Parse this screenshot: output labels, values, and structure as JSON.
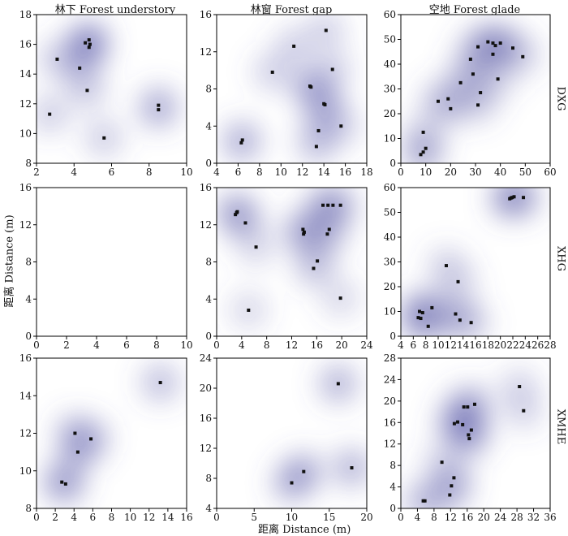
{
  "figure": {
    "col_titles": [
      "林下 Forest understory",
      "林窗 Forest gap",
      "空地 Forest glade"
    ],
    "row_labels": [
      "DXG",
      "XHG",
      "XMHE"
    ],
    "xlabel": "距离 Distance (m)",
    "ylabel": "距离 Distance (m)",
    "colors": {
      "density": "#5a5aa8",
      "point": "#111111",
      "frame": "#000000"
    }
  },
  "chart_data": [
    {
      "type": "scatter",
      "row": "DXG",
      "column": "林下 Forest understory",
      "xlim": [
        2,
        10
      ],
      "ylim": [
        8,
        18
      ],
      "xticks": [
        2,
        4,
        6,
        8,
        10
      ],
      "yticks": [
        8,
        10,
        12,
        14,
        16,
        18
      ],
      "points": [
        [
          4.8,
          16.3
        ],
        [
          4.6,
          16.1
        ],
        [
          4.85,
          16.0
        ],
        [
          4.8,
          15.8
        ],
        [
          3.1,
          15.0
        ],
        [
          4.3,
          14.4
        ],
        [
          4.7,
          12.9
        ],
        [
          8.5,
          11.9
        ],
        [
          8.5,
          11.6
        ],
        [
          2.7,
          11.3
        ],
        [
          5.6,
          9.7
        ]
      ]
    },
    {
      "type": "scatter",
      "row": "DXG",
      "column": "林窗 Forest gap",
      "xlim": [
        4,
        18
      ],
      "ylim": [
        0,
        16
      ],
      "xticks": [
        4,
        6,
        8,
        10,
        12,
        14,
        16,
        18
      ],
      "yticks": [
        0,
        4,
        8,
        12,
        16
      ],
      "points": [
        [
          14.2,
          14.3
        ],
        [
          11.2,
          12.6
        ],
        [
          14.8,
          10.1
        ],
        [
          9.2,
          9.8
        ],
        [
          12.7,
          8.3
        ],
        [
          12.8,
          8.2
        ],
        [
          14.0,
          6.4
        ],
        [
          14.1,
          6.3
        ],
        [
          15.6,
          4.0
        ],
        [
          13.5,
          3.5
        ],
        [
          6.4,
          2.5
        ],
        [
          6.3,
          2.2
        ],
        [
          13.3,
          1.8
        ]
      ]
    },
    {
      "type": "scatter",
      "row": "DXG",
      "column": "空地 Forest glade",
      "xlim": [
        0,
        60
      ],
      "ylim": [
        0,
        60
      ],
      "xticks": [
        0,
        10,
        20,
        30,
        40,
        50,
        60
      ],
      "yticks": [
        0,
        10,
        20,
        30,
        40,
        50,
        60
      ],
      "points": [
        [
          35,
          49
        ],
        [
          37,
          48.5
        ],
        [
          40,
          48.5
        ],
        [
          38,
          47.5
        ],
        [
          31,
          47
        ],
        [
          45,
          46.5
        ],
        [
          37,
          44
        ],
        [
          49,
          43
        ],
        [
          28,
          42
        ],
        [
          29,
          36
        ],
        [
          24,
          32.5
        ],
        [
          39,
          34
        ],
        [
          32,
          28.5
        ],
        [
          19,
          26
        ],
        [
          15,
          25
        ],
        [
          31,
          23.5
        ],
        [
          20,
          22
        ],
        [
          9,
          12.5
        ],
        [
          10,
          6
        ],
        [
          9,
          4.5
        ],
        [
          8,
          3.5
        ]
      ]
    },
    {
      "type": "scatter",
      "row": "XHG",
      "column": "林下 Forest understory",
      "xlim": [
        0,
        10
      ],
      "ylim": [
        0,
        16
      ],
      "xticks": [
        0,
        2,
        4,
        6,
        8,
        10
      ],
      "yticks": [
        0,
        4,
        8,
        12,
        16
      ],
      "points": []
    },
    {
      "type": "scatter",
      "row": "XHG",
      "column": "林窗 Forest gap",
      "xlim": [
        0,
        24
      ],
      "ylim": [
        0,
        16
      ],
      "xticks": [
        0,
        4,
        8,
        12,
        16,
        20,
        24
      ],
      "yticks": [
        0,
        4,
        8,
        12,
        16
      ],
      "points": [
        [
          3.3,
          13.4
        ],
        [
          3.0,
          13.1
        ],
        [
          3.2,
          13.3
        ],
        [
          17.0,
          14.1
        ],
        [
          17.8,
          14.1
        ],
        [
          18.6,
          14.1
        ],
        [
          19.8,
          14.1
        ],
        [
          4.6,
          12.2
        ],
        [
          13.8,
          11.5
        ],
        [
          14.0,
          11.2
        ],
        [
          13.9,
          11.0
        ],
        [
          18.0,
          11.5
        ],
        [
          17.7,
          11.0
        ],
        [
          6.3,
          9.6
        ],
        [
          16.1,
          8.1
        ],
        [
          15.5,
          7.3
        ],
        [
          19.8,
          4.1
        ],
        [
          5.1,
          2.8
        ]
      ]
    },
    {
      "type": "scatter",
      "row": "XHG",
      "column": "空地 Forest glade",
      "xlim": [
        4,
        28
      ],
      "ylim": [
        0,
        60
      ],
      "xticks": [
        4,
        6,
        8,
        10,
        12,
        14,
        16,
        18,
        20,
        22,
        24,
        26,
        28
      ],
      "yticks": [
        0,
        10,
        20,
        30,
        40,
        50,
        60
      ],
      "points": [
        [
          21.5,
          55.5
        ],
        [
          21.9,
          56
        ],
        [
          22.2,
          56.3
        ],
        [
          21.7,
          55.8
        ],
        [
          23.7,
          56
        ],
        [
          11.3,
          28.5
        ],
        [
          13.2,
          22
        ],
        [
          9.0,
          11.5
        ],
        [
          7.0,
          10
        ],
        [
          7.5,
          9.5
        ],
        [
          6.8,
          7.5
        ],
        [
          7.2,
          7.2
        ],
        [
          12.8,
          9
        ],
        [
          13.5,
          6.5
        ],
        [
          15.3,
          5.5
        ],
        [
          8.4,
          4
        ]
      ]
    },
    {
      "type": "scatter",
      "row": "XMHE",
      "column": "林下 Forest understory",
      "xlim": [
        0,
        16
      ],
      "ylim": [
        8,
        16
      ],
      "xticks": [
        0,
        2,
        4,
        6,
        8,
        10,
        12,
        14,
        16
      ],
      "yticks": [
        8,
        10,
        12,
        14,
        16
      ],
      "points": [
        [
          13.2,
          14.7
        ],
        [
          4.1,
          12.0
        ],
        [
          5.8,
          11.7
        ],
        [
          4.4,
          11.0
        ],
        [
          2.7,
          9.4
        ],
        [
          3.1,
          9.3
        ]
      ]
    },
    {
      "type": "scatter",
      "row": "XMHE",
      "column": "林窗 Forest gap",
      "xlim": [
        0,
        20
      ],
      "ylim": [
        4,
        24
      ],
      "xticks": [
        0,
        5,
        10,
        15,
        20
      ],
      "yticks": [
        4,
        8,
        12,
        16,
        20,
        24
      ],
      "points": [
        [
          16.2,
          20.6
        ],
        [
          11.6,
          8.9
        ],
        [
          18.0,
          9.4
        ],
        [
          10.0,
          7.4
        ]
      ]
    },
    {
      "type": "scatter",
      "row": "XMHE",
      "column": "空地 Forest glade",
      "xlim": [
        0,
        36
      ],
      "ylim": [
        0,
        28
      ],
      "xticks": [
        0,
        4,
        8,
        12,
        16,
        20,
        24,
        28,
        32,
        36
      ],
      "yticks": [
        0,
        4,
        8,
        12,
        16,
        20,
        24,
        28
      ],
      "points": [
        [
          28.6,
          22.7
        ],
        [
          29.6,
          18.2
        ],
        [
          17.8,
          19.4
        ],
        [
          16.1,
          18.9
        ],
        [
          15.2,
          18.9
        ],
        [
          13.7,
          16.1
        ],
        [
          12.9,
          15.8
        ],
        [
          14.9,
          15.6
        ],
        [
          17.0,
          14.6
        ],
        [
          16.3,
          13.7
        ],
        [
          16.5,
          13.0
        ],
        [
          9.9,
          8.6
        ],
        [
          12.8,
          5.7
        ],
        [
          12.2,
          4.2
        ],
        [
          11.8,
          2.5
        ],
        [
          5.4,
          1.4
        ],
        [
          5.8,
          1.4
        ]
      ]
    }
  ]
}
